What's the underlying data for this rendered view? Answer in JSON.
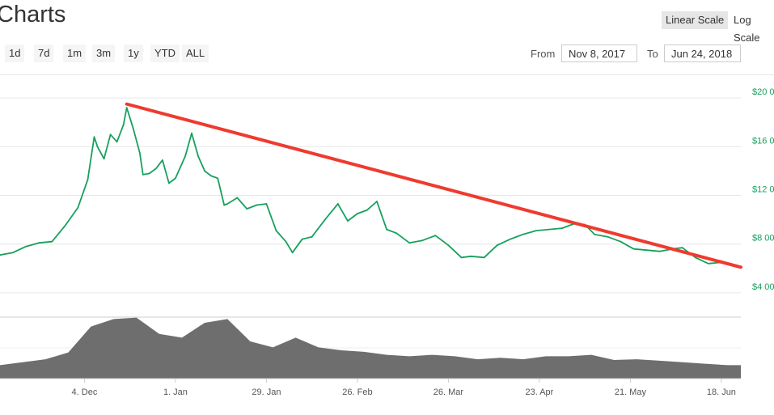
{
  "header": {
    "title": "Charts",
    "scale_linear": "Linear Scale",
    "scale_log": "Log Scale"
  },
  "zoom": {
    "buttons": [
      "1d",
      "7d",
      "1m",
      "3m",
      "1y",
      "YTD",
      "ALL"
    ],
    "from_label": "From",
    "from_value": "Nov 8, 2017",
    "to_label": "To",
    "to_value": "Jun 24, 2018"
  },
  "colors": {
    "price_line": "#17a05d",
    "volume": "#6e6e6e",
    "trendline": "#ef3a2f",
    "axis_label": "#17a05d"
  },
  "chart_data": {
    "type": "line",
    "xlabel": "",
    "ylabel": "",
    "y_tick_labels": [
      "$20 0",
      "$16 0",
      "$12 0",
      "$8 00",
      "$4 00"
    ],
    "y_ticks": [
      20000,
      16000,
      12000,
      8000,
      4000
    ],
    "x_tick_labels": [
      "4. Dec",
      "1. Jan",
      "29. Jan",
      "26. Feb",
      "26. Mar",
      "23. Apr",
      "21. May",
      "18. Jun"
    ],
    "x_ticks": [
      "2017-12-04",
      "2018-01-01",
      "2018-01-29",
      "2018-02-26",
      "2018-03-26",
      "2018-04-23",
      "2018-05-21",
      "2018-06-18"
    ],
    "xlim": [
      "2017-11-08",
      "2018-06-24"
    ],
    "ylim": [
      2000,
      22000
    ],
    "grid": true,
    "series": [
      {
        "type": "line",
        "x": [
          "2017-11-08",
          "2017-11-12",
          "2017-11-16",
          "2017-11-20",
          "2017-11-24",
          "2017-11-28",
          "2017-12-02",
          "2017-12-05",
          "2017-12-07",
          "2017-12-08",
          "2017-12-10",
          "2017-12-12",
          "2017-12-14",
          "2017-12-16",
          "2017-12-17",
          "2017-12-19",
          "2017-12-21",
          "2017-12-22",
          "2017-12-24",
          "2017-12-26",
          "2017-12-28",
          "2017-12-30",
          "2018-01-01",
          "2018-01-04",
          "2018-01-06",
          "2018-01-08",
          "2018-01-10",
          "2018-01-12",
          "2018-01-14",
          "2018-01-16",
          "2018-01-17",
          "2018-01-20",
          "2018-01-23",
          "2018-01-26",
          "2018-01-29",
          "2018-02-01",
          "2018-02-04",
          "2018-02-06",
          "2018-02-09",
          "2018-02-12",
          "2018-02-16",
          "2018-02-20",
          "2018-02-23",
          "2018-02-26",
          "2018-03-01",
          "2018-03-04",
          "2018-03-07",
          "2018-03-10",
          "2018-03-14",
          "2018-03-18",
          "2018-03-22",
          "2018-03-26",
          "2018-03-30",
          "2018-04-02",
          "2018-04-06",
          "2018-04-10",
          "2018-04-14",
          "2018-04-18",
          "2018-04-22",
          "2018-04-26",
          "2018-04-30",
          "2018-05-04",
          "2018-05-07",
          "2018-05-10",
          "2018-05-14",
          "2018-05-18",
          "2018-05-22",
          "2018-05-26",
          "2018-05-30",
          "2018-06-03",
          "2018-06-06",
          "2018-06-10",
          "2018-06-14",
          "2018-06-18",
          "2018-06-22",
          "2018-06-24"
        ],
        "values": [
          7100,
          7300,
          7800,
          8100,
          8200,
          9500,
          11000,
          13300,
          16800,
          16000,
          15000,
          17000,
          16400,
          17800,
          19200,
          17500,
          15500,
          13700,
          13800,
          14200,
          14900,
          13000,
          13400,
          15200,
          17100,
          15200,
          14000,
          13600,
          13400,
          11200,
          11300,
          11800,
          10900,
          11200,
          11300,
          9100,
          8200,
          7300,
          8400,
          8600,
          10000,
          11300,
          9900,
          10500,
          10800,
          11500,
          9200,
          8900,
          8100,
          8300,
          8700,
          7900,
          6900,
          7000,
          6900,
          7900,
          8400,
          8800,
          9100,
          9200,
          9300,
          9700,
          9600,
          8800,
          8600,
          8200,
          7600,
          7500,
          7400,
          7600,
          7700,
          6900,
          6400,
          6500,
          6300,
          6100
        ]
      }
    ],
    "volume": {
      "x": [
        "2017-11-08",
        "2017-11-15",
        "2017-11-22",
        "2017-11-29",
        "2017-12-06",
        "2017-12-13",
        "2017-12-20",
        "2017-12-27",
        "2018-01-03",
        "2018-01-10",
        "2018-01-17",
        "2018-01-24",
        "2018-01-31",
        "2018-02-07",
        "2018-02-14",
        "2018-02-21",
        "2018-02-28",
        "2018-03-07",
        "2018-03-14",
        "2018-03-21",
        "2018-03-28",
        "2018-04-04",
        "2018-04-11",
        "2018-04-18",
        "2018-04-25",
        "2018-05-02",
        "2018-05-09",
        "2018-05-16",
        "2018-05-23",
        "2018-05-30",
        "2018-06-06",
        "2018-06-13",
        "2018-06-20",
        "2018-06-24"
      ],
      "values": [
        0.18,
        0.22,
        0.26,
        0.35,
        0.7,
        0.8,
        0.82,
        0.6,
        0.55,
        0.75,
        0.8,
        0.5,
        0.42,
        0.55,
        0.42,
        0.38,
        0.36,
        0.32,
        0.3,
        0.32,
        0.3,
        0.26,
        0.28,
        0.26,
        0.3,
        0.3,
        0.32,
        0.25,
        0.26,
        0.24,
        0.22,
        0.2,
        0.18,
        0.18
      ]
    },
    "trendline": {
      "x": [
        "2017-12-17",
        "2018-06-24"
      ],
      "values": [
        19500,
        6100
      ]
    }
  }
}
